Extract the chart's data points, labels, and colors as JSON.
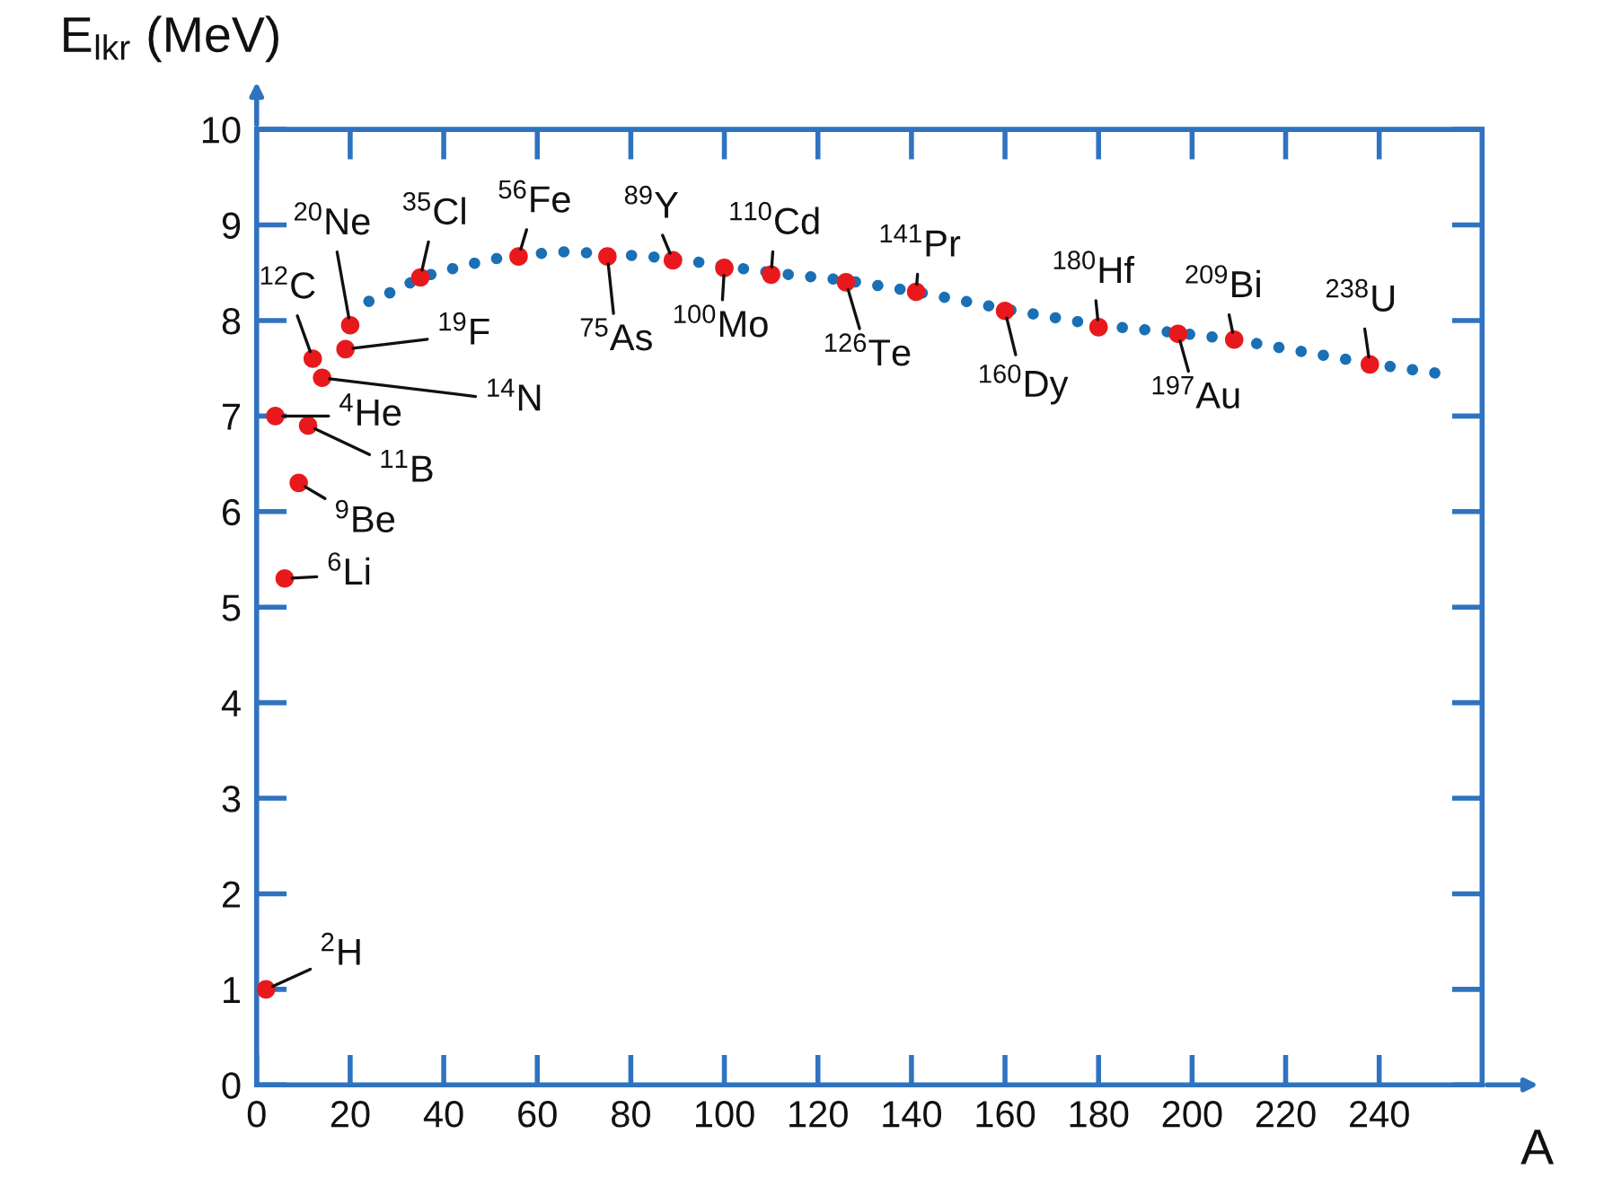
{
  "chart_data": {
    "type": "scatter",
    "xlabel": "A",
    "ylabel": "E$_{lkr}$ (MeV)",
    "xlim": [
      0,
      262
    ],
    "ylim": [
      0,
      10
    ],
    "xticks": [
      0,
      20,
      40,
      60,
      80,
      100,
      120,
      140,
      160,
      180,
      200,
      220,
      240
    ],
    "yticks": [
      0,
      1,
      2,
      3,
      4,
      5,
      6,
      7,
      8,
      9,
      10
    ],
    "grid": false,
    "legend": false,
    "series": [
      {
        "type": "line",
        "color": "#1a6fb5",
        "line_style": "dotted",
        "marker": "none",
        "x": [
          24,
          30,
          35,
          40,
          50,
          56,
          65,
          75,
          89,
          100,
          110,
          126,
          141,
          160,
          180,
          197,
          209,
          238,
          252
        ],
        "values": [
          8.2,
          8.32,
          8.45,
          8.52,
          8.64,
          8.68,
          8.72,
          8.7,
          8.65,
          8.57,
          8.5,
          8.42,
          8.3,
          8.12,
          7.95,
          7.87,
          7.8,
          7.55,
          7.45
        ]
      },
      {
        "color": "#e8191c",
        "marker": "circle",
        "x": [
          2,
          6,
          4,
          9,
          11,
          12,
          14,
          19,
          20,
          35,
          56,
          75,
          89,
          100,
          110,
          126,
          141,
          160,
          180,
          197,
          209,
          238
        ],
        "values": [
          1.0,
          5.3,
          7.0,
          6.3,
          6.9,
          7.6,
          7.4,
          7.7,
          7.95,
          8.45,
          8.67,
          8.67,
          8.63,
          8.55,
          8.48,
          8.4,
          8.3,
          8.1,
          7.93,
          7.86,
          7.8,
          7.54
        ]
      }
    ],
    "annotations": [
      {
        "text": "$^{2}$H",
        "x": 2,
        "y": 1.0
      },
      {
        "text": "$^{6}$Li",
        "x": 6,
        "y": 5.3
      },
      {
        "text": "$^{4}$He",
        "x": 4,
        "y": 7.0
      },
      {
        "text": "$^{9}$Be",
        "x": 9,
        "y": 6.3
      },
      {
        "text": "$^{11}$B",
        "x": 11,
        "y": 6.9
      },
      {
        "text": "$^{12}$C",
        "x": 12,
        "y": 7.6
      },
      {
        "text": "$^{14}$N",
        "x": 14,
        "y": 7.4
      },
      {
        "text": "$^{19}$F",
        "x": 19,
        "y": 7.7
      },
      {
        "text": "$^{20}$Ne",
        "x": 20,
        "y": 7.95
      },
      {
        "text": "$^{35}$Cl",
        "x": 35,
        "y": 8.45
      },
      {
        "text": "$^{56}$Fe",
        "x": 56,
        "y": 8.67
      },
      {
        "text": "$^{75}$As",
        "x": 75,
        "y": 8.67
      },
      {
        "text": "$^{89}$Y",
        "x": 89,
        "y": 8.63
      },
      {
        "text": "$^{100}$Mo",
        "x": 100,
        "y": 8.55
      },
      {
        "text": "$^{110}$Cd",
        "x": 110,
        "y": 8.48
      },
      {
        "text": "$^{126}$Te",
        "x": 126,
        "y": 8.4
      },
      {
        "text": "$^{141}$Pr",
        "x": 141,
        "y": 8.3
      },
      {
        "text": "$^{160}$Dy",
        "x": 160,
        "y": 8.1
      },
      {
        "text": "$^{180}$Hf",
        "x": 180,
        "y": 7.93
      },
      {
        "text": "$^{197}$Au",
        "x": 197,
        "y": 7.86
      },
      {
        "text": "$^{209}$Bi",
        "x": 209,
        "y": 7.8
      },
      {
        "text": "$^{238}$U",
        "x": 238,
        "y": 7.54
      }
    ]
  }
}
